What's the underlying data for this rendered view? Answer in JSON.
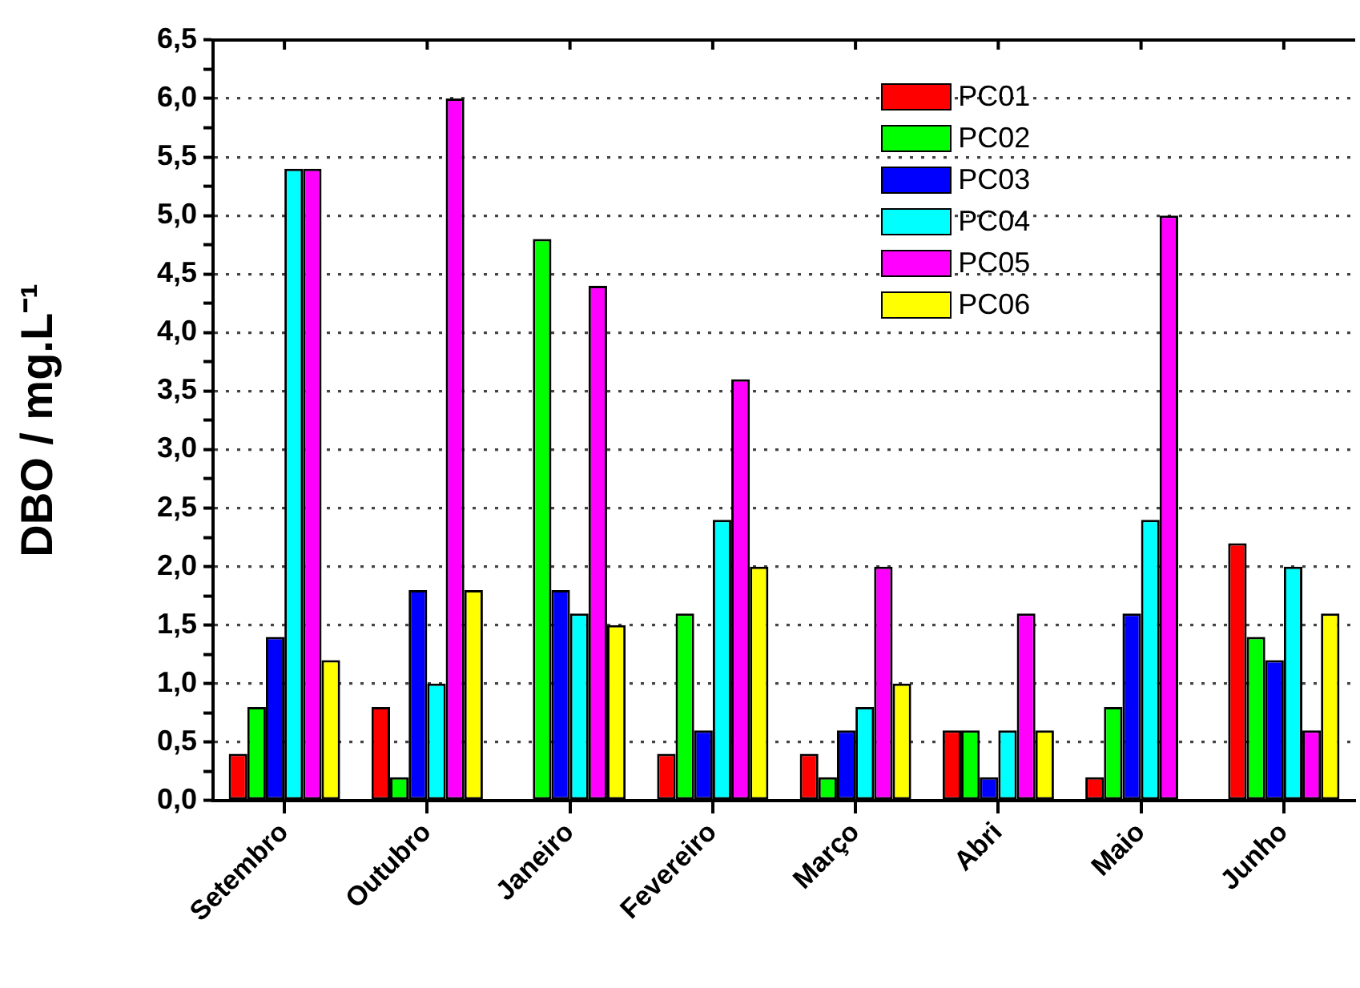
{
  "chart_data": {
    "type": "bar",
    "ylabel": "DBO / mg.L⁻¹",
    "categories": [
      "Setembro",
      "Outubro",
      "Janeiro",
      "Fevereiro",
      "Março",
      "Abri",
      "Maio",
      "Junho"
    ],
    "series": [
      {
        "name": "PC01",
        "color": "#ff0000",
        "values": [
          0.4,
          0.8,
          null,
          0.4,
          0.4,
          0.6,
          0.2,
          2.2
        ]
      },
      {
        "name": "PC02",
        "color": "#00ff00",
        "values": [
          0.8,
          0.2,
          4.8,
          1.6,
          0.2,
          0.6,
          0.8,
          1.4
        ]
      },
      {
        "name": "PC03",
        "color": "#0000ff",
        "values": [
          1.4,
          1.8,
          1.8,
          0.6,
          0.6,
          0.2,
          1.6,
          1.2
        ]
      },
      {
        "name": "PC04",
        "color": "#00ffff",
        "values": [
          5.4,
          1.0,
          1.6,
          2.4,
          0.8,
          0.6,
          2.4,
          2.0
        ]
      },
      {
        "name": "PC05",
        "color": "#ff00ff",
        "values": [
          5.4,
          6.0,
          4.4,
          3.6,
          2.0,
          1.6,
          5.0,
          0.6
        ]
      },
      {
        "name": "PC06",
        "color": "#ffff00",
        "values": [
          1.2,
          1.8,
          1.5,
          2.0,
          1.0,
          0.6,
          null,
          1.6
        ]
      }
    ],
    "ylim": [
      0,
      6.5
    ],
    "yticks": [
      {
        "value": 0,
        "label": "0,0"
      },
      {
        "value": 0.25,
        "label": null
      },
      {
        "value": 0.5,
        "label": "0,5"
      },
      {
        "value": 0.75,
        "label": null
      },
      {
        "value": 1,
        "label": "1,0"
      },
      {
        "value": 1.25,
        "label": null
      },
      {
        "value": 1.5,
        "label": "1,5"
      },
      {
        "value": 1.75,
        "label": null
      },
      {
        "value": 2,
        "label": "2,0"
      },
      {
        "value": 2.25,
        "label": null
      },
      {
        "value": 2.5,
        "label": "2,5"
      },
      {
        "value": 2.75,
        "label": null
      },
      {
        "value": 3,
        "label": "3,0"
      },
      {
        "value": 3.25,
        "label": null
      },
      {
        "value": 3.5,
        "label": "3,5"
      },
      {
        "value": 3.75,
        "label": null
      },
      {
        "value": 4,
        "label": "4,0"
      },
      {
        "value": 4.25,
        "label": null
      },
      {
        "value": 4.5,
        "label": "4,5"
      },
      {
        "value": 4.75,
        "label": null
      },
      {
        "value": 5,
        "label": "5,0"
      },
      {
        "value": 5.25,
        "label": null
      },
      {
        "value": 5.5,
        "label": "5,5"
      },
      {
        "value": 5.75,
        "label": null
      },
      {
        "value": 6,
        "label": "6,0"
      },
      {
        "value": 6.25,
        "label": null
      },
      {
        "value": 6.5,
        "label": "6,5"
      }
    ],
    "grid": "y",
    "legend": "top right"
  }
}
